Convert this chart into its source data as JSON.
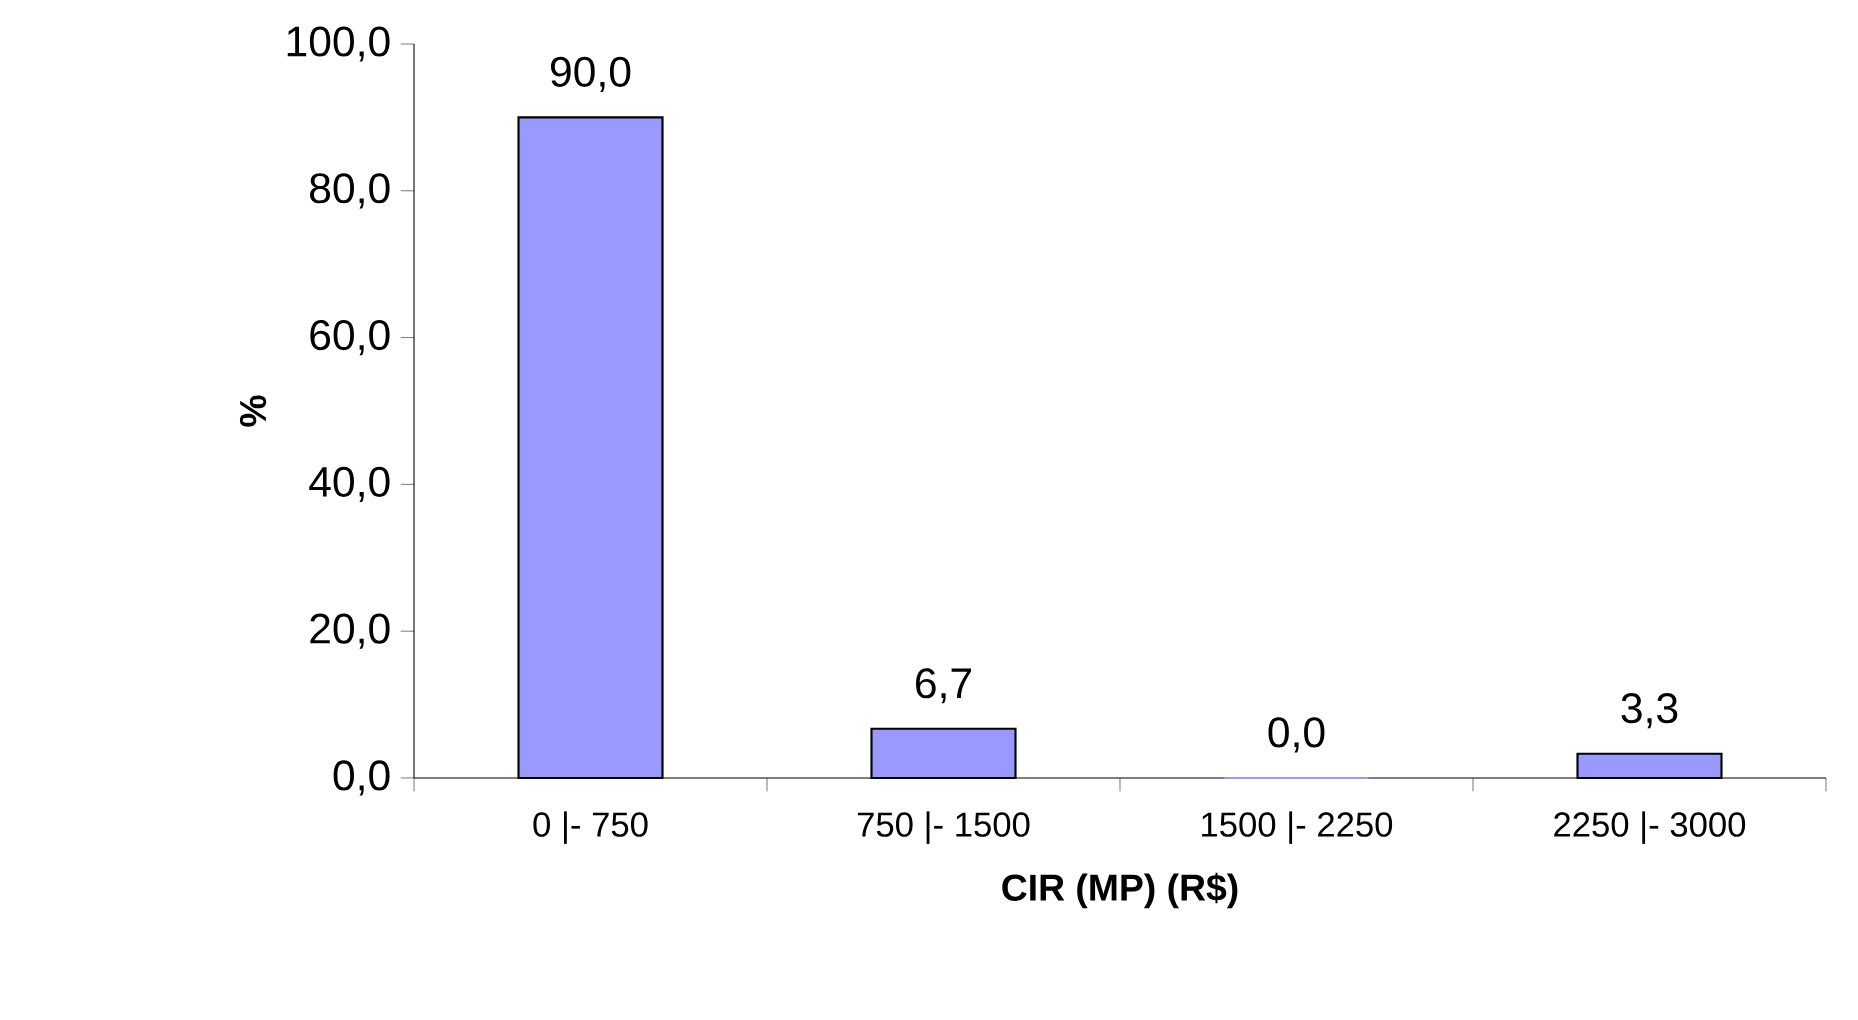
{
  "chart_data": {
    "type": "bar",
    "xlabel": "CIR (MP) (R$)",
    "ylabel": "%",
    "categories": [
      "0 |- 750",
      "750 |- 1500",
      "1500 |- 2250",
      "2250 |- 3000"
    ],
    "values": [
      90.0,
      6.7,
      0.0,
      3.3
    ],
    "value_labels": [
      "90,0",
      "6,7",
      "0,0",
      "3,3"
    ],
    "color": "#9999ff",
    "ylim": [
      0,
      100
    ],
    "yticks": [
      {
        "value": 0,
        "label": "0,0"
      },
      {
        "value": 20,
        "label": "20,0"
      },
      {
        "value": 40,
        "label": "40,0"
      },
      {
        "value": 60,
        "label": "60,0"
      },
      {
        "value": 80,
        "label": "80,0"
      },
      {
        "value": 100,
        "label": "100,0"
      }
    ],
    "grid": false
  }
}
